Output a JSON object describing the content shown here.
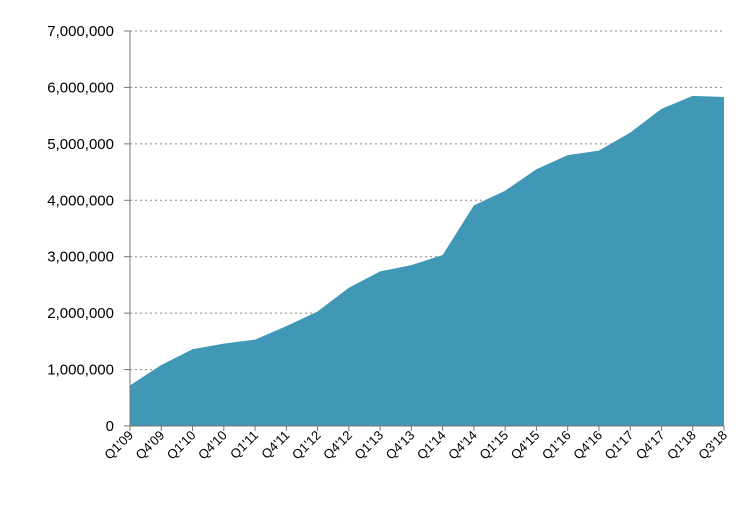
{
  "chart_data": {
    "type": "area",
    "title": "",
    "xlabel": "",
    "ylabel": "",
    "ylim": [
      0,
      7000000
    ],
    "yticks": [
      0,
      1000000,
      2000000,
      3000000,
      4000000,
      5000000,
      6000000,
      7000000
    ],
    "ytick_labels": [
      "0",
      "1,000,000",
      "2,000,000",
      "3,000,000",
      "4,000,000",
      "5,000,000",
      "6,000,000",
      "7,000,000"
    ],
    "grid": true,
    "legend": "none",
    "color": "#4097b6",
    "x_labels_shown": [
      "Q1'09",
      "Q4'09",
      "Q1'10",
      "Q4'10",
      "Q1'11",
      "Q4'11",
      "Q1'12",
      "Q4'12",
      "Q1'13",
      "Q4'13",
      "Q1'14",
      "Q4'14",
      "Q1'15",
      "Q4'15",
      "Q1'16",
      "Q4'16",
      "Q1'17",
      "Q4'17",
      "Q1'18",
      "Q3'18"
    ],
    "values": [
      720000,
      1080000,
      1360000,
      1460000,
      1530000,
      1770000,
      2030000,
      2450000,
      2740000,
      2850000,
      3030000,
      3910000,
      4170000,
      4550000,
      4800000,
      4880000,
      5200000,
      5620000,
      5850000,
      5830000
    ]
  }
}
